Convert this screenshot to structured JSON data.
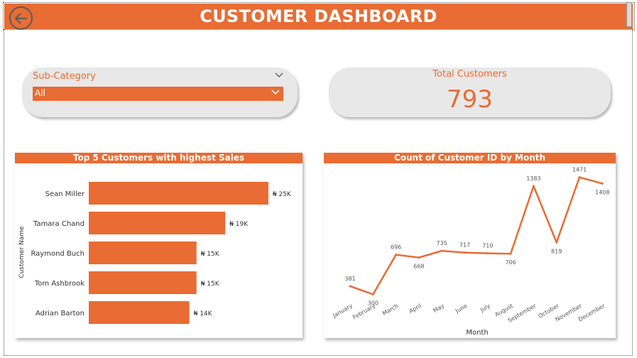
{
  "header": {
    "title": "CUSTOMER DASHBOARD"
  },
  "slicer": {
    "label": "Sub-Category",
    "selected": "All"
  },
  "card": {
    "label": "Total Customers",
    "value": "793"
  },
  "colors": {
    "accent": "#E86C33",
    "pill": "#e8e8e8",
    "text": "#333333"
  },
  "icons": {
    "back": "back-arrow-icon",
    "chevron": "chevron-down-icon"
  },
  "chart_data": [
    {
      "type": "bar",
      "orientation": "horizontal",
      "title": "Top 5 Customers with highest Sales",
      "ylabel": "Customer Name",
      "xlabel": "",
      "categories": [
        "Sean Miller",
        "Tamara Chand",
        "Raymond Buch",
        "Tom Ashbrook",
        "Adrian Barton"
      ],
      "values": [
        25000,
        19000,
        15000,
        15000,
        14000
      ],
      "labels": [
        "₦ 25K",
        "₦ 19K",
        "₦ 15K",
        "₦ 15K",
        "₦ 14K"
      ],
      "xlim": [
        0,
        26000
      ],
      "grid": false
    },
    {
      "type": "line",
      "title": "Count of Customer ID by Month",
      "xlabel": "Month",
      "ylabel": "",
      "categories": [
        "January",
        "February",
        "March",
        "April",
        "May",
        "June",
        "July",
        "August",
        "September",
        "October",
        "November",
        "December"
      ],
      "values": [
        381,
        300,
        696,
        668,
        735,
        717,
        710,
        706,
        1383,
        819,
        1471,
        1408
      ],
      "ylim": [
        260,
        1560
      ],
      "grid": false
    }
  ]
}
